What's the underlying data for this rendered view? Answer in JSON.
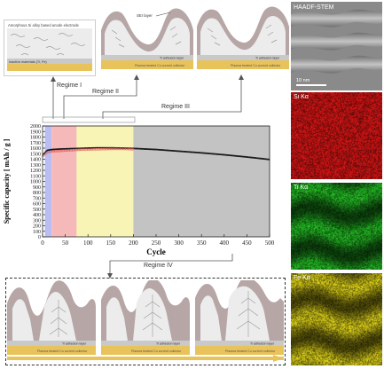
{
  "schematics": {
    "top_left_electrode_label": "Amorphous Si alloy based anode electrode",
    "top_left_inactive_label": "Inactive materials (Ti, Fe)",
    "sei_label": "SEI layer",
    "ti_adhesion_label": "Ti adhesion layer",
    "cu_collector_label": "Plasma treated Cu current collector"
  },
  "regimes": {
    "regime1": "Regime I",
    "regime2": "Regime II",
    "regime3": "Regime III",
    "regime4": "Regime IV"
  },
  "eds_panels": {
    "haadf": "HAADF-STEM",
    "scale_bar": "10 nm",
    "si": "Si Kα",
    "ti": "Ti Kα",
    "fe": "Fe Kα"
  },
  "colors": {
    "regime1": "#b9bdf2",
    "regime2": "#f6b9b9",
    "regime3": "#f7f4b6",
    "regime4": "#c3c3c3",
    "series_main": "#1a1a1a",
    "series_faded": "#e35a5a",
    "si_map": "#c81414",
    "ti_map": "#1fa41f",
    "fe_map": "#bfb516",
    "collector": "#e8c25a"
  },
  "chart_data": {
    "type": "scatter",
    "xlabel": "Cycle",
    "ylabel": "Specific capacity [ mAh / g ]",
    "xlim": [
      0,
      500
    ],
    "ylim": [
      0,
      2000
    ],
    "x_ticks": [
      0,
      50,
      100,
      150,
      200,
      250,
      300,
      350,
      400,
      450,
      500
    ],
    "y_ticks": [
      0,
      100,
      200,
      300,
      400,
      500,
      600,
      700,
      800,
      900,
      1000,
      1100,
      1200,
      1300,
      1400,
      1500,
      1600,
      1700,
      1800,
      1900,
      2000
    ],
    "regions": [
      {
        "name": "Regime I",
        "from": 5,
        "to": 20
      },
      {
        "name": "Regime II",
        "from": 20,
        "to": 75
      },
      {
        "name": "Regime III",
        "from": 75,
        "to": 200
      },
      {
        "name": "Regime IV",
        "from": 200,
        "to": 500
      }
    ],
    "series": [
      {
        "x": [
          1,
          10,
          20,
          40,
          60,
          80,
          100,
          120,
          150,
          180,
          200,
          250,
          300,
          350,
          400,
          450,
          500
        ],
        "values": [
          1480,
          1560,
          1575,
          1585,
          1590,
          1595,
          1600,
          1605,
          1605,
          1600,
          1595,
          1575,
          1545,
          1515,
          1480,
          1440,
          1395
        ]
      },
      {
        "x": [
          1,
          10,
          20,
          40,
          60,
          80,
          100,
          120,
          150,
          180,
          200
        ],
        "values": [
          1460,
          1520,
          1540,
          1550,
          1560,
          1570,
          1575,
          1580,
          1585,
          1585,
          1580
        ]
      }
    ]
  }
}
